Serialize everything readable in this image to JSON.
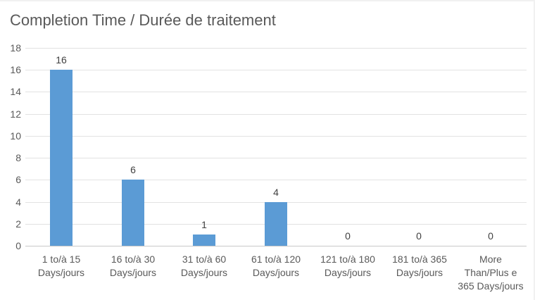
{
  "title": "Completion Time / Durée de traitement",
  "colors": {
    "bar": "#5b9bd5",
    "gridline": "#e2e2e2",
    "axis_line": "#c8c8c8",
    "title_text": "#595959",
    "tick_text": "#595959",
    "value_label_text": "#404040",
    "background": "#ffffff"
  },
  "chart_data": {
    "type": "bar",
    "title": "Completion Time / Durée de traitement",
    "categories": [
      "1 to/à 15 Days/jours",
      "16 to/à 30 Days/jours",
      "31 to/à 60 Days/jours",
      "61 to/à 120 Days/jours",
      "121 to/à 180 Days/jours",
      "181 to/à 365 Days/jours",
      "More Than/Plus e 365 Days/jours"
    ],
    "category_lines": [
      [
        "1 to/à 15",
        "Days/jours"
      ],
      [
        "16 to/à 30",
        "Days/jours"
      ],
      [
        "31 to/à 60",
        "Days/jours"
      ],
      [
        "61 to/à 120",
        "Days/jours"
      ],
      [
        "121 to/à 180",
        "Days/jours"
      ],
      [
        "181 to/à 365",
        "Days/jours"
      ],
      [
        "More",
        "Than/Plus e",
        "365 Days/jours"
      ]
    ],
    "values": [
      16,
      6,
      1,
      4,
      0,
      0,
      0
    ],
    "data_labels": [
      16,
      6,
      1,
      4,
      0,
      0,
      0
    ],
    "xlabel": "",
    "ylabel": "",
    "ylim": [
      0,
      18
    ],
    "yticks": [
      0,
      2,
      4,
      6,
      8,
      10,
      12,
      14,
      16,
      18
    ],
    "grid": true,
    "legend": "none",
    "bar_color": "#5b9bd5"
  }
}
